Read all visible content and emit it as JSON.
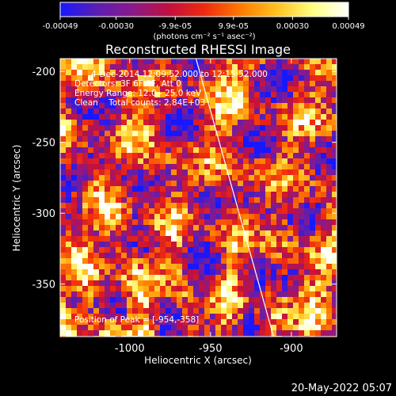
{
  "colorbar": {
    "ticks": [
      "-0.00049",
      "-0.00030",
      "-9.9e-05",
      "9.9e-05",
      "0.00030",
      "0.00049"
    ],
    "unit_label": "(photons cm⁻² s⁻¹ asec⁻²)",
    "colors": [
      "#1818ff",
      "#5a1eb4",
      "#8a1a8a",
      "#c01040",
      "#ee2a10",
      "#ff7a00",
      "#ffc020",
      "#ffff80",
      "#ffffff"
    ]
  },
  "chart_data": {
    "type": "heatmap",
    "title": "Reconstructed RHESSI Image",
    "xlabel": "Heliocentric X (arcsec)",
    "ylabel": "Heliocentric Y (arcsec)",
    "xlim": [
      -1043,
      -872
    ],
    "ylim": [
      -387,
      -191
    ],
    "x_ticks": [
      "-1000",
      "-950",
      "-900"
    ],
    "x_tick_values": [
      -1000,
      -950,
      -900
    ],
    "y_ticks": [
      "-200",
      "-250",
      "-300",
      "-350"
    ],
    "y_tick_values": [
      -200,
      -250,
      -300,
      -350
    ],
    "value_range": [
      -0.00049,
      0.00049
    ],
    "annotations": [
      "4-Dec-2014 12:09:52.000 to 12:15:52.000",
      "Detectors: 3F 6F 9F, Att 0",
      "Energy Range: 12.0 - 25.0 keV",
      "Clean    Total counts: 2.84E+03"
    ],
    "peak_label": "Position of Peak = [-954,-358]",
    "limb_line": [
      [
        -959,
        -191
      ],
      [
        -911,
        -387
      ]
    ]
  },
  "footer": {
    "timestamp": "20-May-2022 05:07"
  }
}
